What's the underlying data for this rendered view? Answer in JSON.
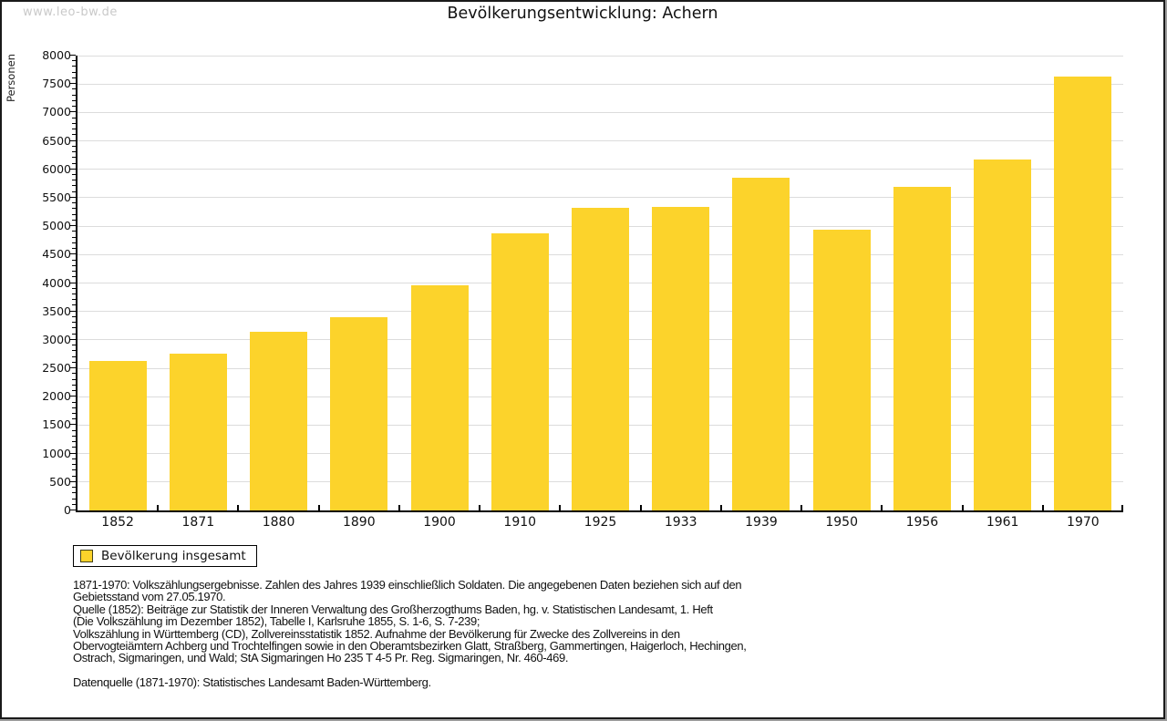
{
  "watermark": "www.leo-bw.de",
  "title": "Bevölkerungsentwicklung: Achern",
  "legend": {
    "label": "Bevölkerung insgesamt",
    "swatch_color": "#fcd32b",
    "swatch_border_color": "#45431c"
  },
  "chart_data": {
    "type": "bar",
    "title": "Bevölkerungsentwicklung: Achern",
    "xlabel": "",
    "ylabel": "Personen",
    "categories": [
      "1852",
      "1871",
      "1880",
      "1890",
      "1900",
      "1910",
      "1925",
      "1933",
      "1939",
      "1950",
      "1956",
      "1961",
      "1970"
    ],
    "series": [
      {
        "name": "Bevölkerung insgesamt",
        "values": [
          2630,
          2760,
          3140,
          3400,
          3960,
          4870,
          5330,
          5340,
          5850,
          4940,
          5690,
          6170,
          7630
        ]
      }
    ],
    "ylim": [
      0,
      8000
    ],
    "ytick_major": 500,
    "ytick_minor": 100,
    "grid": true,
    "gridline_color": "#dcdcdc",
    "bar_color": "#fcd32b",
    "legend_position": "below-left"
  },
  "footer": {
    "lines": [
      "1871-1970: Volkszählungsergebnisse. Zahlen des Jahres 1939 einschließlich Soldaten. Die angegebenen Daten beziehen sich auf den",
      "Gebietsstand vom 27.05.1970.",
      "Quelle (1852): Beiträge zur Statistik der Inneren Verwaltung des Großherzogthums Baden, hg. v. Statistischen Landesamt, 1. Heft",
      "(Die Volkszählung im Dezember 1852), Tabelle I, Karlsruhe 1855, S. 1-6, S. 7-239;",
      "Volkszählung in Württemberg (CD), Zollvereinsstatistik 1852. Aufnahme der Bevölkerung für Zwecke des Zollvereins in den",
      "Obervogteiämtern Achberg und Trochtelfingen sowie in den Oberamtsbezirken Glatt, Straßberg, Gammertingen, Haigerloch, Hechingen,",
      "Ostrach, Sigmaringen, und Wald; StA Sigmaringen Ho 235 T 4-5 Pr. Reg. Sigmaringen, Nr. 460-469."
    ],
    "datasource": "Datenquelle (1871-1970): Statistisches Landesamt Baden-Württemberg."
  }
}
